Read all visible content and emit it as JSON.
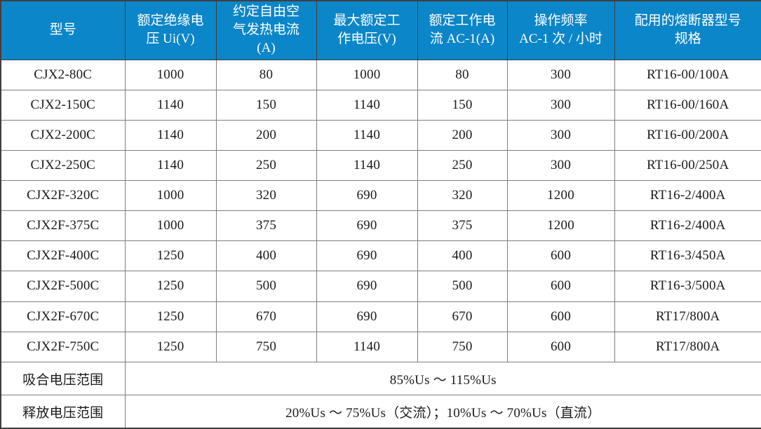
{
  "table": {
    "title_semantic": "CJX2 / CJX2F contactor specification table",
    "columns": [
      "型号",
      "额定绝缘电\n压 Ui(V)",
      "约定自由空\n气发热电流\n(A)",
      "最大额定工\n作电压(V)",
      "额定工作电\n流 AC-1(A)",
      "操作频率\nAC-1 次 / 小时",
      "配用的熔断器型号\n规格"
    ],
    "rows": [
      [
        "CJX2-80C",
        "1000",
        "80",
        "1000",
        "80",
        "300",
        "RT16-00/100A"
      ],
      [
        "CJX2-150C",
        "1140",
        "150",
        "1140",
        "150",
        "300",
        "RT16-00/160A"
      ],
      [
        "CJX2-200C",
        "1140",
        "200",
        "1140",
        "200",
        "300",
        "RT16-00/200A"
      ],
      [
        "CJX2-250C",
        "1140",
        "250",
        "1140",
        "250",
        "300",
        "RT16-00/250A"
      ],
      [
        "CJX2F-320C",
        "1000",
        "320",
        "690",
        "320",
        "1200",
        "RT16-2/400A"
      ],
      [
        "CJX2F-375C",
        "1000",
        "375",
        "690",
        "375",
        "1200",
        "RT16-2/400A"
      ],
      [
        "CJX2F-400C",
        "1250",
        "400",
        "690",
        "400",
        "600",
        "RT16-3/450A"
      ],
      [
        "CJX2F-500C",
        "1250",
        "500",
        "690",
        "500",
        "600",
        "RT16-3/500A"
      ],
      [
        "CJX2F-670C",
        "1250",
        "670",
        "690",
        "670",
        "600",
        "RT17/800A"
      ],
      [
        "CJX2F-750C",
        "1250",
        "750",
        "1140",
        "750",
        "600",
        "RT17/800A"
      ]
    ],
    "footer_rows": [
      {
        "label": "吸合电压范围",
        "value": "85%Us ～ 115%Us"
      },
      {
        "label": "释放电压范围",
        "value": "20%Us ～ 75%Us（交流）；10%Us ～ 70%Us（直流）"
      }
    ]
  },
  "colors": {
    "header_bg": "#0b86c8",
    "header_text": "#ffffff",
    "frame": "#3f3f3f",
    "grid": "#7f7f7f",
    "text": "#1a1a1a",
    "bg": "#ffffff"
  }
}
